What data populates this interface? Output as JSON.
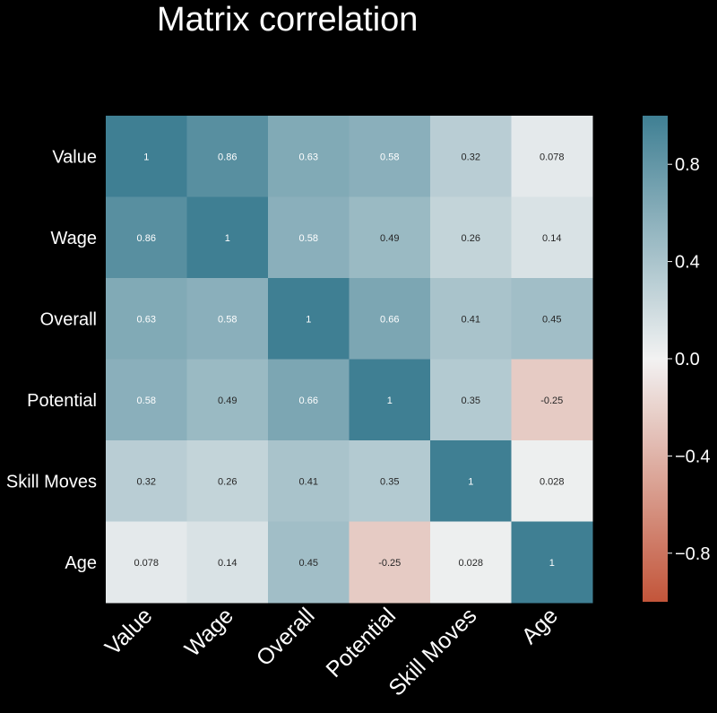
{
  "chart_data": {
    "type": "heatmap",
    "title": "Matrix correlation",
    "xlabel": "",
    "ylabel": "",
    "row_labels": [
      "Value",
      "Wage",
      "Overall",
      "Potential",
      "Skill Moves",
      "Age"
    ],
    "col_labels": [
      "Value",
      "Wage",
      "Overall",
      "Potential",
      "Skill Moves",
      "Age"
    ],
    "values": [
      [
        1,
        0.86,
        0.63,
        0.58,
        0.32,
        0.078
      ],
      [
        0.86,
        1,
        0.58,
        0.49,
        0.26,
        0.14
      ],
      [
        0.63,
        0.58,
        1,
        0.66,
        0.41,
        0.45
      ],
      [
        0.58,
        0.49,
        0.66,
        1,
        0.35,
        -0.25
      ],
      [
        0.32,
        0.26,
        0.41,
        0.35,
        1,
        0.028
      ],
      [
        0.078,
        0.14,
        0.45,
        -0.25,
        0.028,
        1
      ]
    ],
    "cell_labels": [
      [
        "1",
        "0.86",
        "0.63",
        "0.58",
        "0.32",
        "0.078"
      ],
      [
        "0.86",
        "1",
        "0.58",
        "0.49",
        "0.26",
        "0.14"
      ],
      [
        "0.63",
        "0.58",
        "1",
        "0.66",
        "0.41",
        "0.45"
      ],
      [
        "0.58",
        "0.49",
        "0.66",
        "1",
        "0.35",
        "-0.25"
      ],
      [
        "0.32",
        "0.26",
        "0.41",
        "0.35",
        "1",
        "0.028"
      ],
      [
        "0.078",
        "0.14",
        "0.45",
        "-0.25",
        "0.028",
        "1"
      ]
    ],
    "colorbar": {
      "vmin": -1,
      "vmax": 1,
      "ticks": [
        0.8,
        0.4,
        0.0,
        -0.4,
        -0.8
      ],
      "tick_labels": [
        "0.8",
        "0.4",
        "0.0",
        "−0.4",
        "−0.8"
      ]
    },
    "colors": {
      "background": "#000000",
      "positive": "#3f7f93",
      "center": "#f2f2f2",
      "negative": "#c3553a",
      "text": "#ffffff"
    },
    "grid": false
  }
}
